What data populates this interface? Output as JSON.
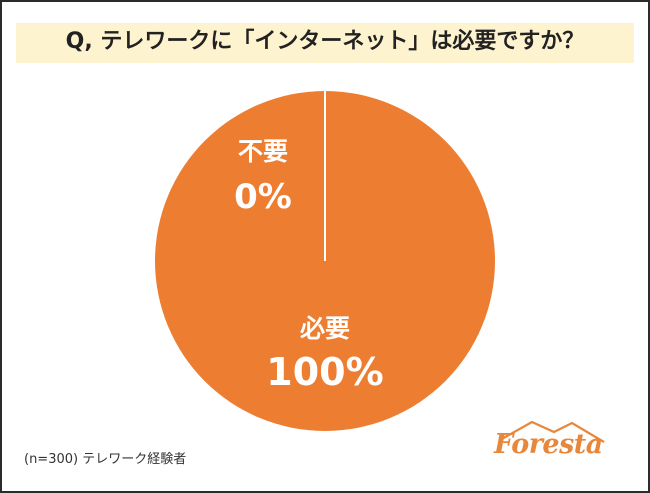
{
  "title": "Q, テレワークに「インターネット」は必要ですか？",
  "footnote": "(n=300) テレワーク経験者",
  "logo_text": "Foresta",
  "colors": {
    "slice": "#ed7d31",
    "title_band": "#fdf3cf",
    "logo": "#e8873a"
  },
  "chart_data": {
    "type": "pie",
    "title": "Q, テレワークに「インターネット」は必要ですか？",
    "slices": [
      {
        "label": "必要",
        "value": 100,
        "value_label": "100%"
      },
      {
        "label": "不要",
        "value": 0,
        "value_label": "0%"
      }
    ]
  }
}
